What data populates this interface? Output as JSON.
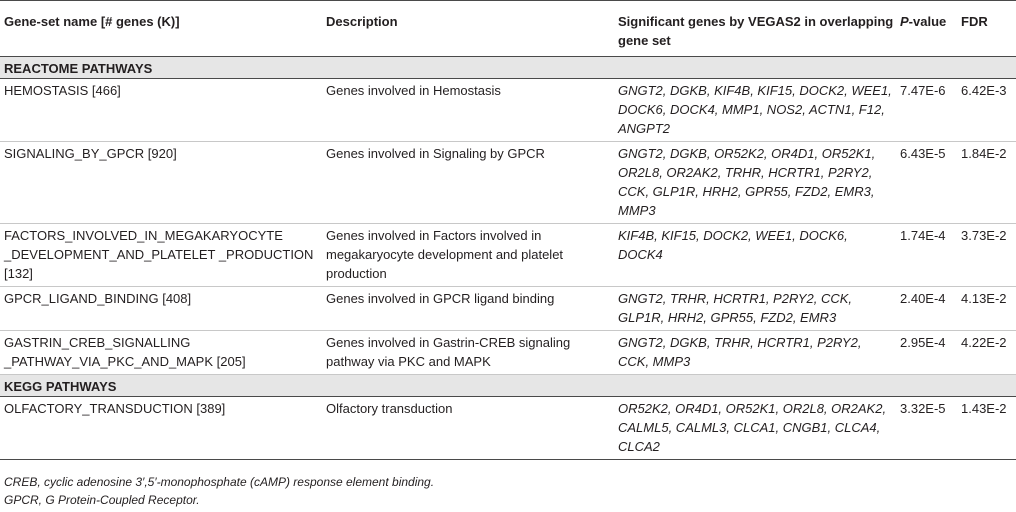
{
  "header": {
    "col1": "Gene-set name [# genes (K)]",
    "col2": "Description",
    "col3": "Significant genes by VEGAS2 in overlapping gene set",
    "col4_p": "P",
    "col4_rest": "-value",
    "col5": "FDR"
  },
  "sections": [
    {
      "title": "REACTOME PATHWAYS",
      "rows": [
        {
          "name": "HEMOSTASIS [466]",
          "description": "Genes involved in Hemostasis",
          "genes": "GNGT2, DGKB, KIF4B, KIF15, DOCK2, WEE1, DOCK6, DOCK4, MMP1, NOS2, ACTN1, F12, ANGPT2",
          "pvalue": "7.47E-6",
          "fdr": "6.42E-3"
        },
        {
          "name": "SIGNALING_BY_GPCR [920]",
          "description": "Genes involved in Signaling by GPCR",
          "genes": "GNGT2, DGKB, OR52K2, OR4D1, OR52K1, OR2L8, OR2AK2, TRHR, HCRTR1, P2RY2, CCK, GLP1R, HRH2, GPR55, FZD2, EMR3, MMP3",
          "pvalue": "6.43E-5",
          "fdr": "1.84E-2"
        },
        {
          "name": "FACTORS_INVOLVED_IN_MEGAKARYOCYTE _DEVELOPMENT_AND_PLATELET _PRODUCTION [132]",
          "description": "Genes involved in Factors involved in megakaryocyte development and platelet production",
          "genes": "KIF4B, KIF15, DOCK2, WEE1, DOCK6, DOCK4",
          "pvalue": "1.74E-4",
          "fdr": "3.73E-2"
        },
        {
          "name": "GPCR_LIGAND_BINDING [408]",
          "description": "Genes involved in GPCR ligand binding",
          "genes": "GNGT2, TRHR, HCRTR1, P2RY2, CCK, GLP1R, HRH2, GPR55, FZD2, EMR3",
          "pvalue": "2.40E-4",
          "fdr": "4.13E-2"
        },
        {
          "name": "GASTRIN_CREB_SIGNALLING _PATHWAY_VIA_PKC_AND_MAPK [205]",
          "description": "Genes involved in Gastrin-CREB signaling pathway via PKC and MAPK",
          "genes": "GNGT2, DGKB, TRHR, HCRTR1, P2RY2, CCK, MMP3",
          "pvalue": "2.95E-4",
          "fdr": "4.22E-2"
        }
      ]
    },
    {
      "title": "KEGG PATHWAYS",
      "rows": [
        {
          "name": "OLFACTORY_TRANSDUCTION [389]",
          "description": "Olfactory transduction",
          "genes": "OR52K2, OR4D1, OR52K1, OR2L8, OR2AK2, CALML5, CALML3, CLCA1, CNGB1, CLCA4, CLCA2",
          "pvalue": "3.32E-5",
          "fdr": "1.43E-2"
        }
      ]
    }
  ],
  "footnotes": [
    "CREB, cyclic adenosine 3′,5′-monophosphate (cAMP) response element binding.",
    "GPCR, G Protein-Coupled Receptor."
  ]
}
